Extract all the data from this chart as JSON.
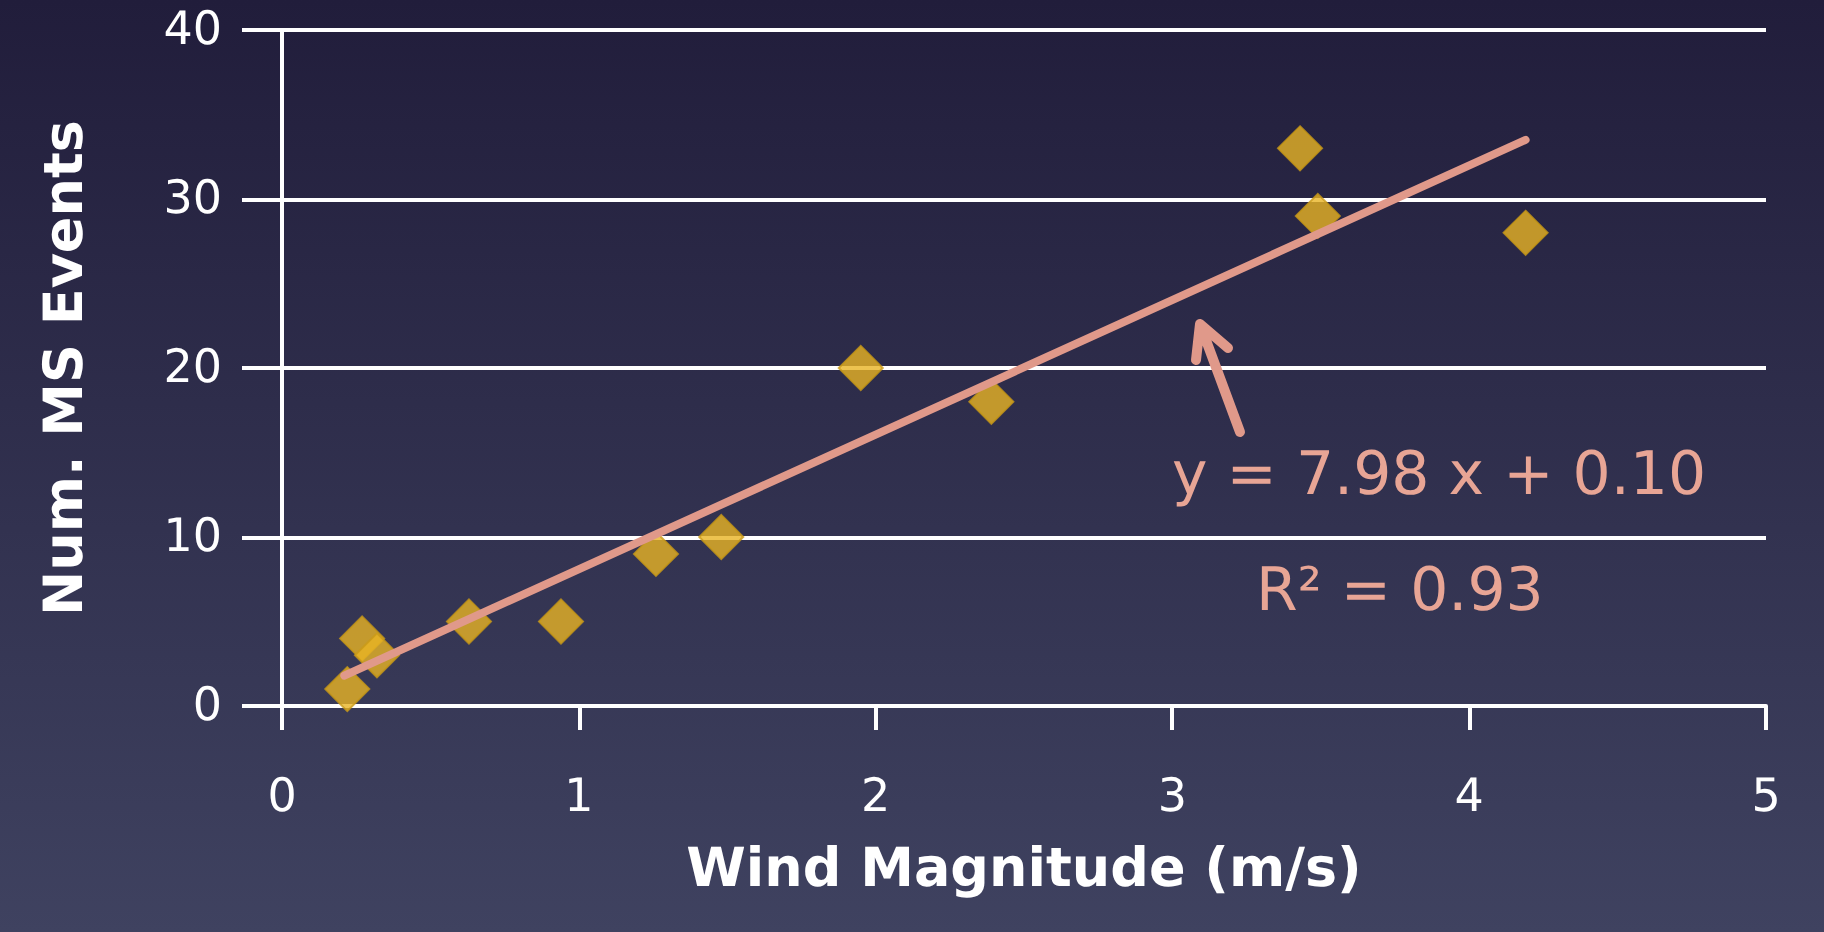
{
  "chart_data": {
    "type": "scatter",
    "xlabel": "Wind Magnitude (m/s)",
    "ylabel": "Num. MS Events",
    "xlim": [
      0,
      5
    ],
    "xticks": [
      0,
      1,
      2,
      3,
      4,
      5
    ],
    "ylim": [
      0,
      40
    ],
    "yticks": [
      0,
      10,
      20,
      30,
      40
    ],
    "grid": "y",
    "marker": "diamond",
    "annotations": [
      "y = 7.98 x + 0.10",
      "R² = 0.93"
    ],
    "series": [
      {
        "color": "#e8b424",
        "x": [
          0.22,
          0.27,
          0.32,
          0.63,
          0.94,
          1.26,
          1.48,
          1.95,
          2.39,
          3.43,
          3.49,
          4.19
        ],
        "values": [
          1,
          4,
          3,
          5,
          5,
          9,
          10,
          20,
          18,
          33,
          29,
          28
        ]
      },
      {
        "type": "line",
        "color": "#e0998a",
        "marker": "none",
        "x": [
          0.21,
          4.19
        ],
        "values": [
          1.8,
          33.5
        ]
      }
    ]
  }
}
